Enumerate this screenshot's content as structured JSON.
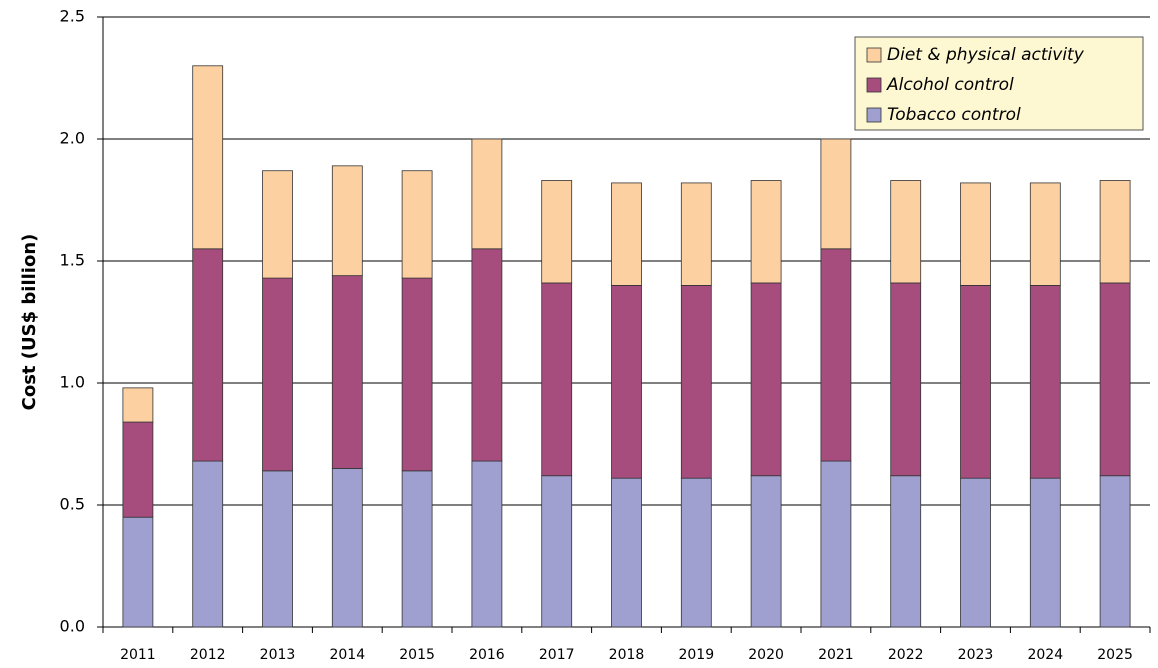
{
  "chart_data": {
    "type": "stacked_bar",
    "y_label": "Cost (US$ billion)",
    "categories": [
      "2011",
      "2012",
      "2013",
      "2014",
      "2015",
      "2016",
      "2017",
      "2018",
      "2019",
      "2020",
      "2021",
      "2022",
      "2023",
      "2024",
      "2025"
    ],
    "series": [
      {
        "name": "Tobacco control",
        "color": "#9fa0d0",
        "values": [
          0.45,
          0.68,
          0.64,
          0.65,
          0.64,
          0.68,
          0.62,
          0.61,
          0.61,
          0.62,
          0.68,
          0.62,
          0.61,
          0.61,
          0.62
        ]
      },
      {
        "name": "Alcohol control",
        "color": "#a64d7e",
        "values": [
          0.39,
          0.87,
          0.79,
          0.79,
          0.79,
          0.87,
          0.79,
          0.79,
          0.79,
          0.79,
          0.87,
          0.79,
          0.79,
          0.79,
          0.79
        ]
      },
      {
        "name": "Diet & physical activity",
        "color": "#fcd0a1",
        "values": [
          0.14,
          0.75,
          0.44,
          0.45,
          0.44,
          0.45,
          0.42,
          0.42,
          0.42,
          0.42,
          0.45,
          0.42,
          0.42,
          0.42,
          0.42
        ]
      }
    ],
    "ylim": [
      0,
      2.5
    ],
    "yticks": [
      {
        "value": 0,
        "label": "0.0"
      },
      0.5,
      {
        "value": 1,
        "label": "1.0"
      },
      1.5,
      {
        "value": 2,
        "label": "2.0"
      },
      2.5
    ],
    "grid": true
  }
}
